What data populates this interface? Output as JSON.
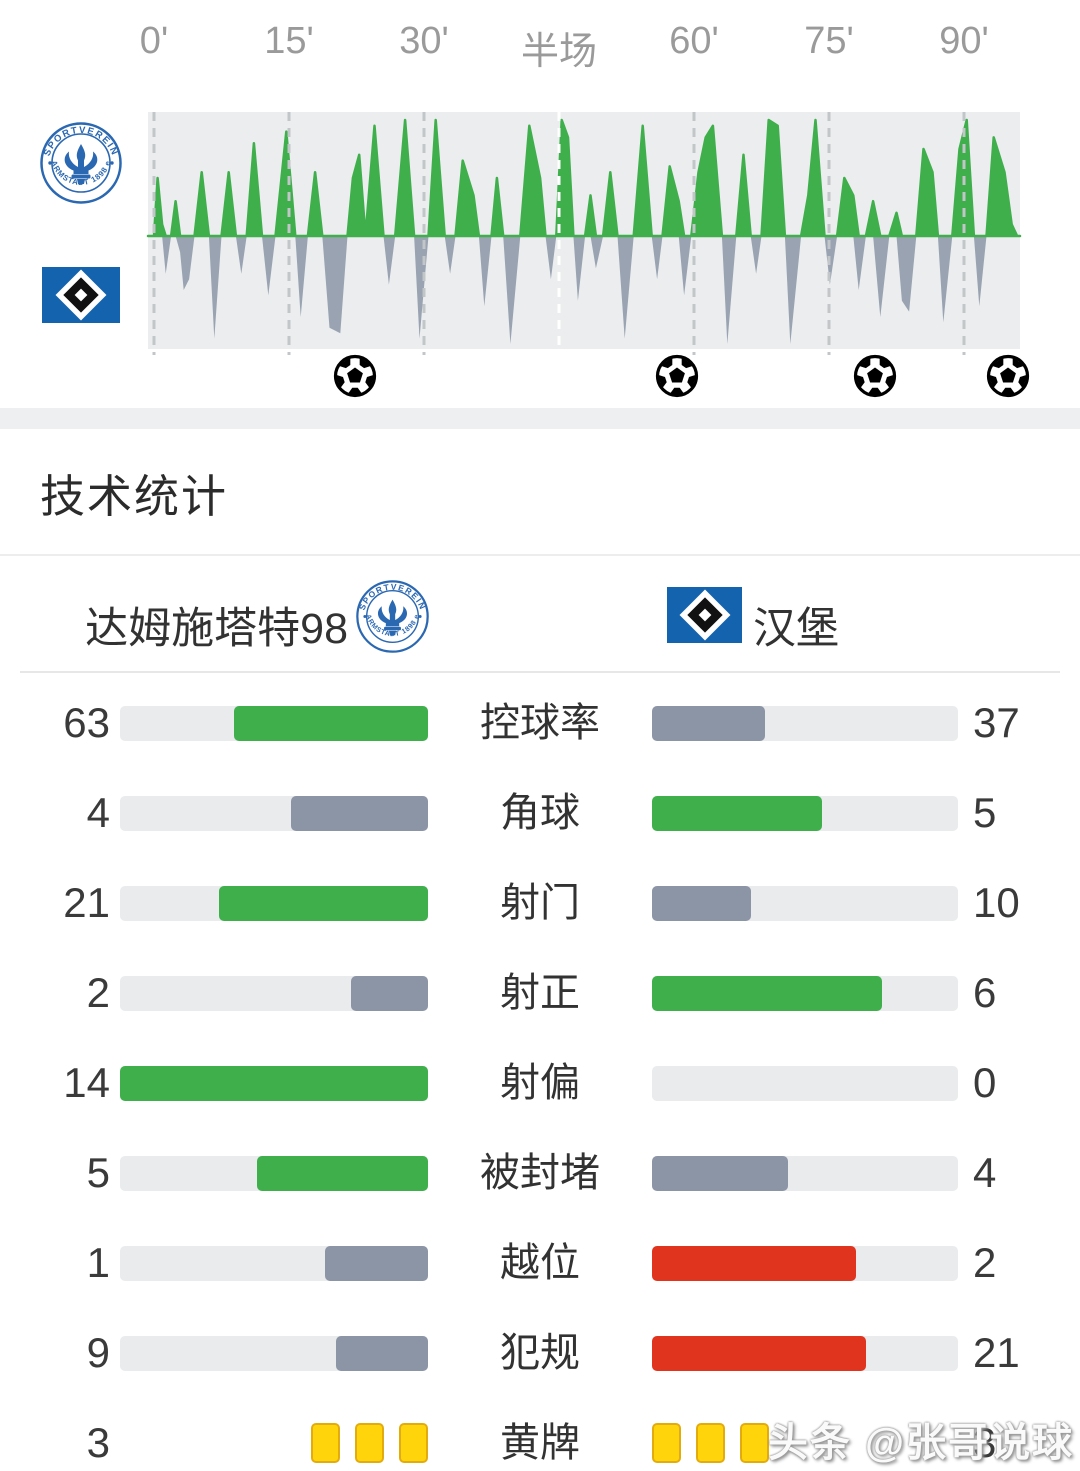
{
  "chart_data": {
    "type": "area",
    "title": "match momentum by minute",
    "x_axis_labels": [
      {
        "text": "0'",
        "minute": 0,
        "halftime": false
      },
      {
        "text": "15'",
        "minute": 15,
        "halftime": false
      },
      {
        "text": "30'",
        "minute": 30,
        "halftime": false
      },
      {
        "text": "半场",
        "minute": 45,
        "halftime": true
      },
      {
        "text": "60'",
        "minute": 60,
        "halftime": false
      },
      {
        "text": "75'",
        "minute": 75,
        "halftime": false
      },
      {
        "text": "90'",
        "minute": 90,
        "halftime": false
      }
    ],
    "series_note": "per-minute momentum: positive = home (green, above line), negative = away (gray, below line), range -1..1",
    "series": [
      [
        0,
        0
      ],
      [
        0.4,
        0.5
      ],
      [
        0.9,
        0.1
      ],
      [
        1.3,
        -0.35
      ],
      [
        1.9,
        0
      ],
      [
        2.4,
        0.3
      ],
      [
        2.9,
        -0.15
      ],
      [
        3.3,
        -0.5
      ],
      [
        3.9,
        -0.4
      ],
      [
        4.5,
        0
      ],
      [
        5.3,
        0.55
      ],
      [
        6.1,
        0
      ],
      [
        6.7,
        -0.95
      ],
      [
        7.5,
        0
      ],
      [
        8.3,
        0.55
      ],
      [
        9.1,
        0
      ],
      [
        9.7,
        -0.35
      ],
      [
        10.3,
        0
      ],
      [
        11.1,
        0.8
      ],
      [
        12,
        0
      ],
      [
        12.7,
        -0.55
      ],
      [
        13.5,
        0
      ],
      [
        14.7,
        0.9
      ],
      [
        15.7,
        0
      ],
      [
        16.3,
        -0.75
      ],
      [
        17.1,
        0
      ],
      [
        17.9,
        0.55
      ],
      [
        18.7,
        0
      ],
      [
        19.5,
        -0.85
      ],
      [
        20.7,
        -0.9
      ],
      [
        21.5,
        0
      ],
      [
        22.1,
        0.5
      ],
      [
        22.8,
        0.7
      ],
      [
        23.5,
        0
      ],
      [
        24.5,
        0.95
      ],
      [
        25.5,
        0
      ],
      [
        26.1,
        -0.45
      ],
      [
        26.8,
        0
      ],
      [
        27.9,
        1
      ],
      [
        28.9,
        0
      ],
      [
        29.5,
        -0.95
      ],
      [
        30.5,
        0
      ],
      [
        31.3,
        1
      ],
      [
        32.3,
        0
      ],
      [
        32.9,
        -0.35
      ],
      [
        33.5,
        0
      ],
      [
        34.3,
        0.65
      ],
      [
        35.5,
        0.35
      ],
      [
        36.1,
        0
      ],
      [
        36.7,
        -0.65
      ],
      [
        37.5,
        0
      ],
      [
        38.1,
        0.5
      ],
      [
        38.8,
        0
      ],
      [
        39.6,
        -1
      ],
      [
        40.7,
        0
      ],
      [
        41.7,
        0.95
      ],
      [
        42.9,
        0.5
      ],
      [
        43.5,
        0
      ],
      [
        44.1,
        -0.4
      ],
      [
        44.7,
        0
      ],
      [
        45.3,
        1
      ],
      [
        46,
        0.85
      ],
      [
        46.6,
        0
      ],
      [
        47.1,
        -0.6
      ],
      [
        47.9,
        0
      ],
      [
        48.5,
        0.35
      ],
      [
        49.1,
        -0.3
      ],
      [
        49.9,
        0
      ],
      [
        50.7,
        0.55
      ],
      [
        51.5,
        0
      ],
      [
        52.3,
        -0.95
      ],
      [
        53.3,
        0
      ],
      [
        54.3,
        0.95
      ],
      [
        55.3,
        0
      ],
      [
        55.9,
        -0.4
      ],
      [
        56.5,
        0
      ],
      [
        57.3,
        0.6
      ],
      [
        58.3,
        0.3
      ],
      [
        58.9,
        -0.55
      ],
      [
        59.7,
        0
      ],
      [
        60.5,
        0.55
      ],
      [
        61.3,
        0.85
      ],
      [
        62.1,
        0.95
      ],
      [
        63.1,
        0
      ],
      [
        63.7,
        -1
      ],
      [
        64.7,
        0
      ],
      [
        65.5,
        0.7
      ],
      [
        66.3,
        0
      ],
      [
        66.9,
        -0.35
      ],
      [
        67.5,
        0
      ],
      [
        68.3,
        1
      ],
      [
        69.3,
        0.95
      ],
      [
        70.1,
        0
      ],
      [
        70.7,
        -1
      ],
      [
        71.9,
        0
      ],
      [
        72.7,
        0.35
      ],
      [
        73.5,
        1
      ],
      [
        74.5,
        0
      ],
      [
        75.1,
        -0.45
      ],
      [
        75.9,
        0
      ],
      [
        76.7,
        0.5
      ],
      [
        77.7,
        0.35
      ],
      [
        78.3,
        -0.5
      ],
      [
        79.1,
        0
      ],
      [
        79.9,
        0.3
      ],
      [
        80.7,
        -0.75
      ],
      [
        81.7,
        0
      ],
      [
        82.5,
        0.2
      ],
      [
        83.1,
        -0.6
      ],
      [
        83.9,
        -0.7
      ],
      [
        84.7,
        0
      ],
      [
        85.5,
        0.75
      ],
      [
        86.5,
        0.55
      ],
      [
        87.1,
        0
      ],
      [
        87.7,
        -0.8
      ],
      [
        88.7,
        0
      ],
      [
        89.5,
        0.75
      ],
      [
        90.3,
        1
      ],
      [
        91.1,
        0
      ],
      [
        91.7,
        -0.65
      ],
      [
        92.5,
        0
      ],
      [
        93.3,
        0.85
      ],
      [
        94.5,
        0.55
      ],
      [
        95.3,
        0.1
      ],
      [
        95.9,
        0
      ]
    ],
    "goal_minutes": [
      22.3,
      58.1,
      80.1,
      94.9
    ],
    "colors": {
      "home": "#3faf4c",
      "away": "#9aa3b2",
      "background": "#ebedee",
      "gridline": "#c3c6c8",
      "halftime_line": "#ffffff"
    }
  },
  "section": {
    "title": "技术统计"
  },
  "teams": {
    "home": {
      "name": "达姆施塔特98",
      "crest_text_top": "SPORTVEREIN",
      "crest_text_bottom": "DARMSTADT 1898 eV"
    },
    "away": {
      "name": "汉堡"
    }
  },
  "stats": {
    "rows": [
      {
        "label": "控球率",
        "home": 63,
        "away": 37,
        "home_color": "green",
        "away_color": "gray"
      },
      {
        "label": "角球",
        "home": 4,
        "away": 5,
        "home_color": "gray",
        "away_color": "green"
      },
      {
        "label": "射门",
        "home": 21,
        "away": 10,
        "home_color": "green",
        "away_color": "gray"
      },
      {
        "label": "射正",
        "home": 2,
        "away": 6,
        "home_color": "gray",
        "away_color": "green"
      },
      {
        "label": "射偏",
        "home": 14,
        "away": 0,
        "home_color": "green",
        "away_color": "none"
      },
      {
        "label": "被封堵",
        "home": 5,
        "away": 4,
        "home_color": "green",
        "away_color": "gray"
      },
      {
        "label": "越位",
        "home": 1,
        "away": 2,
        "home_color": "gray",
        "away_color": "red"
      },
      {
        "label": "犯规",
        "home": 9,
        "away": 21,
        "home_color": "gray",
        "away_color": "red"
      },
      {
        "label": "黄牌",
        "home": 3,
        "away": 3,
        "type": "cards"
      }
    ],
    "bar_colors": {
      "green": "#3faf4c",
      "gray": "#8c95a6",
      "red": "#e1341e",
      "none": "transparent",
      "track": "#e9ebed",
      "card_fill": "#ffd40a",
      "card_border": "#e3ac0e"
    }
  },
  "watermark": "头条 @张哥说球"
}
